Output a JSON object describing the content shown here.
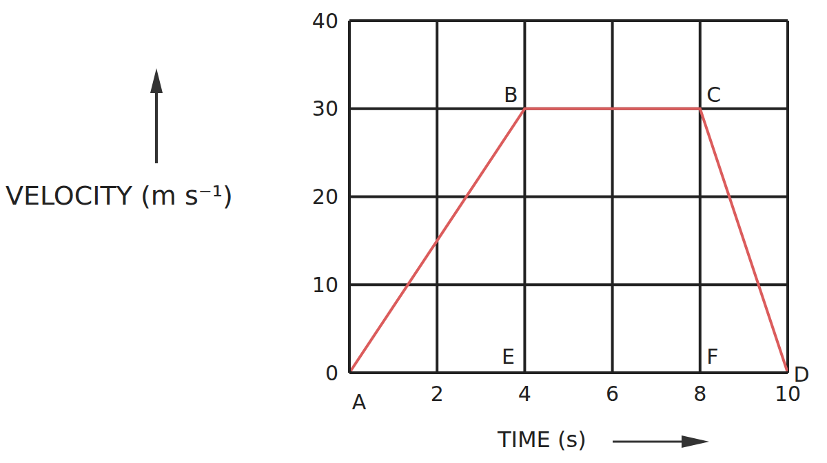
{
  "chart_data": {
    "type": "line",
    "x_label": "TIME (s)",
    "y_label": "VELOCITY (m s⁻¹)",
    "x": [
      0,
      4,
      8,
      10
    ],
    "values": [
      0,
      30,
      30,
      0
    ],
    "color": "#db5c5c",
    "xlim": [
      0,
      10
    ],
    "xticks": [
      2,
      4,
      6,
      8,
      10
    ],
    "ylim": [
      0,
      40
    ],
    "yticks": [
      0,
      10,
      20,
      30,
      40
    ],
    "grid": true,
    "annotations": [
      {
        "text": "A",
        "x": 0,
        "y": 0
      },
      {
        "text": "B",
        "x": 4,
        "y": 30
      },
      {
        "text": "C",
        "x": 8,
        "y": 30
      },
      {
        "text": "D",
        "x": 10,
        "y": 0
      },
      {
        "text": "E",
        "x": 4,
        "y": 0
      },
      {
        "text": "F",
        "x": 8,
        "y": 0
      }
    ]
  }
}
